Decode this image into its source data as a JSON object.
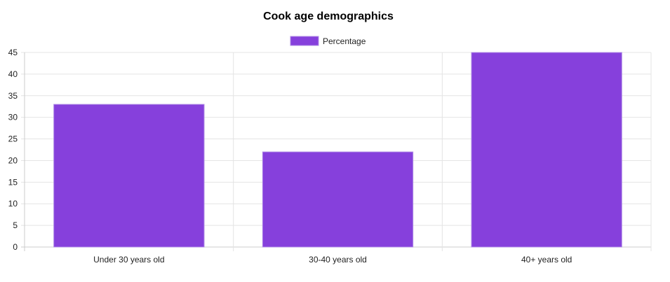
{
  "chart_data": {
    "type": "bar",
    "title": "Cook age demographics",
    "categories": [
      "Under 30 years old",
      "30-40 years old",
      "40+ years old"
    ],
    "series": [
      {
        "name": "Percentage",
        "values": [
          33,
          22,
          45
        ],
        "color": "#8640dc",
        "border_color": "#b08de6"
      }
    ],
    "xlabel": "",
    "ylabel": "",
    "ylim": [
      0,
      45
    ],
    "yticks": [
      0,
      5,
      10,
      15,
      20,
      25,
      30,
      35,
      40,
      45
    ],
    "grid": true,
    "legend_position": "top-center",
    "grid_color": "#e4e4e4",
    "axis_color": "#cccccc"
  }
}
